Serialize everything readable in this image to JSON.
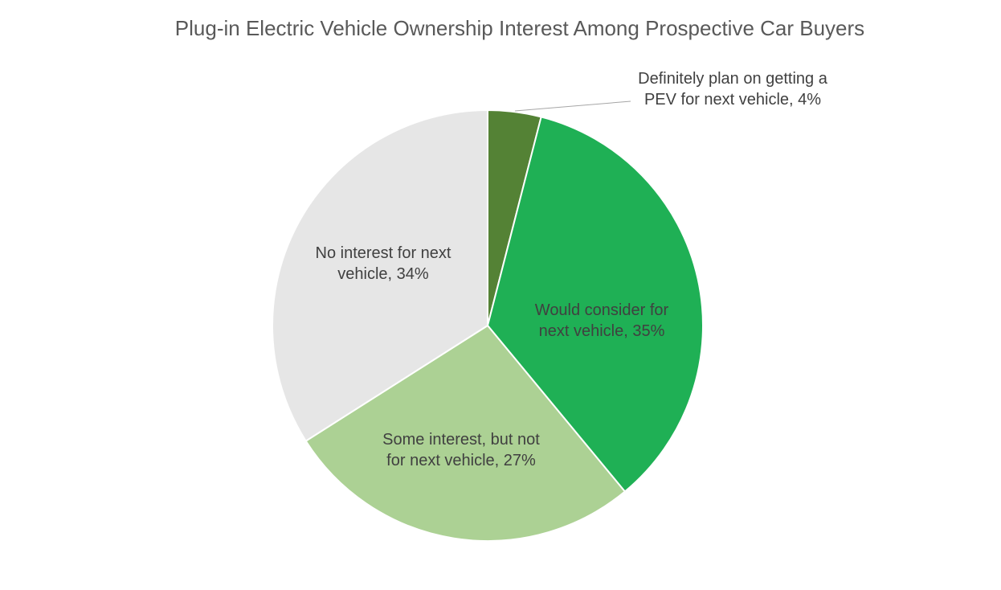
{
  "chart_data": {
    "type": "pie",
    "title": "Plug-in Electric Vehicle Ownership Interest Among Prospective Car Buyers",
    "start_angle_deg": 0,
    "direction": "clockwise",
    "slices": [
      {
        "name": "Definitely plan on getting a PEV for next vehicle",
        "value": 4,
        "color": "#548235",
        "label_lines": [
          "Definitely plan on getting a",
          "PEV for next vehicle, 4%"
        ]
      },
      {
        "name": "Would consider for next vehicle",
        "value": 35,
        "color": "#1fb055",
        "label_lines": [
          "Would consider for",
          "next vehicle, 35%"
        ]
      },
      {
        "name": "Some interest, but not for next vehicle",
        "value": 27,
        "color": "#acd194",
        "label_lines": [
          "Some interest, but not",
          "for next vehicle, 27%"
        ]
      },
      {
        "name": "No interest for next vehicle",
        "value": 34,
        "color": "#e6e6e6",
        "label_lines": [
          "No interest for next",
          "vehicle, 34%"
        ]
      }
    ]
  }
}
